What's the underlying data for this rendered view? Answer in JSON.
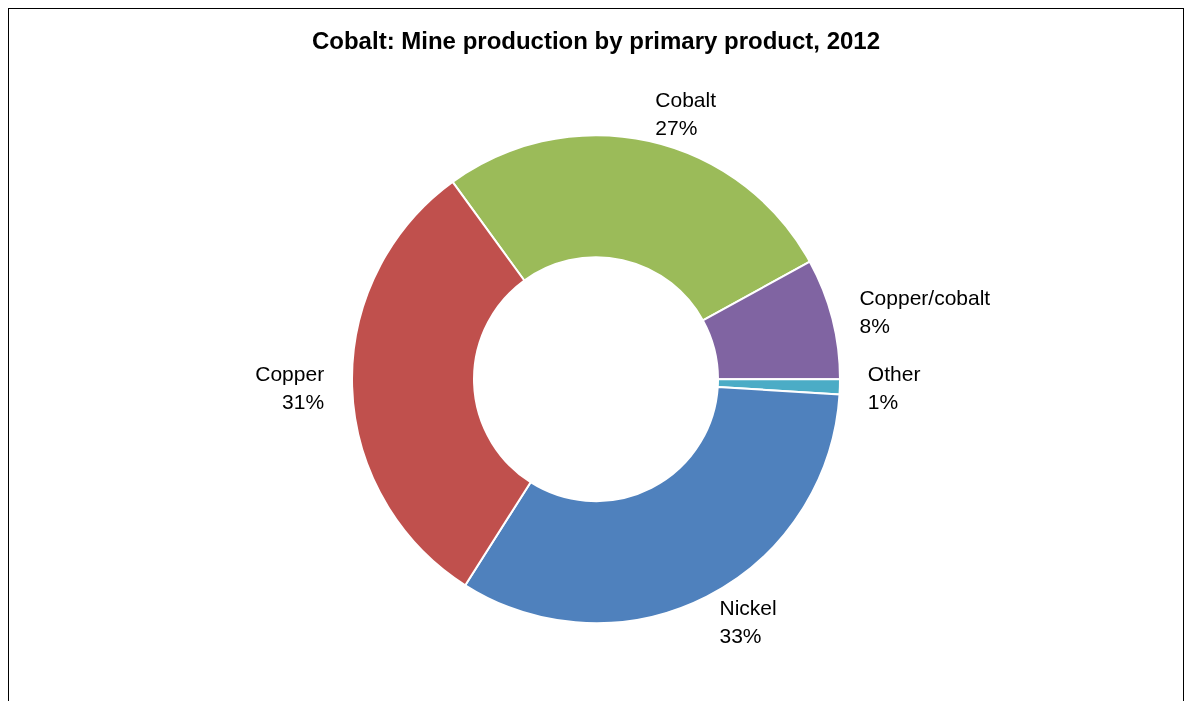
{
  "chart_data": {
    "type": "donut",
    "title": "Cobalt: Mine production by primary product, 2012",
    "categories": [
      "Cobalt",
      "Copper/cobalt",
      "Other",
      "Nickel",
      "Copper"
    ],
    "values": [
      27,
      8,
      1,
      33,
      31
    ],
    "colors": [
      "#9bbb59",
      "#8064a2",
      "#4bacc6",
      "#4f81bd",
      "#c0504d"
    ],
    "value_labels": [
      "27%",
      "8%",
      "1%",
      "33%",
      "31%"
    ]
  }
}
